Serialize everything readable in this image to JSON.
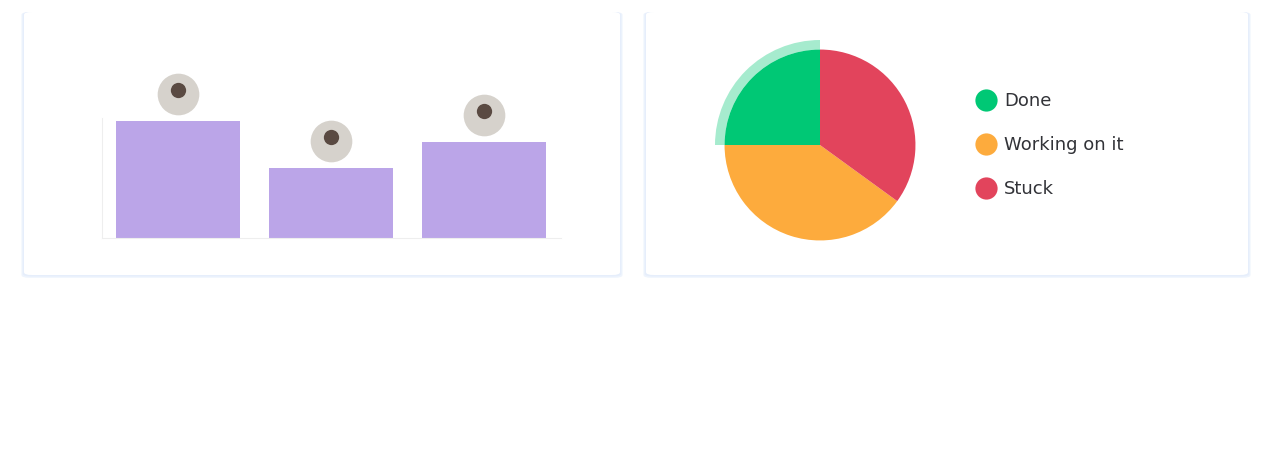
{
  "chart_data": [
    {
      "type": "bar",
      "categories": [
        null,
        null,
        null
      ],
      "values": [
        117,
        70,
        96
      ],
      "color": "#bba5e8",
      "ylim": [
        0,
        120
      ],
      "tick_labels": false
    },
    {
      "type": "pie",
      "categories": [
        "Done",
        "Working on it",
        "Stuck"
      ],
      "values": [
        25,
        40,
        35
      ],
      "colors": [
        "#00c875",
        "#fdab3d",
        "#e2445c"
      ],
      "legend": "center left"
    }
  ]
}
